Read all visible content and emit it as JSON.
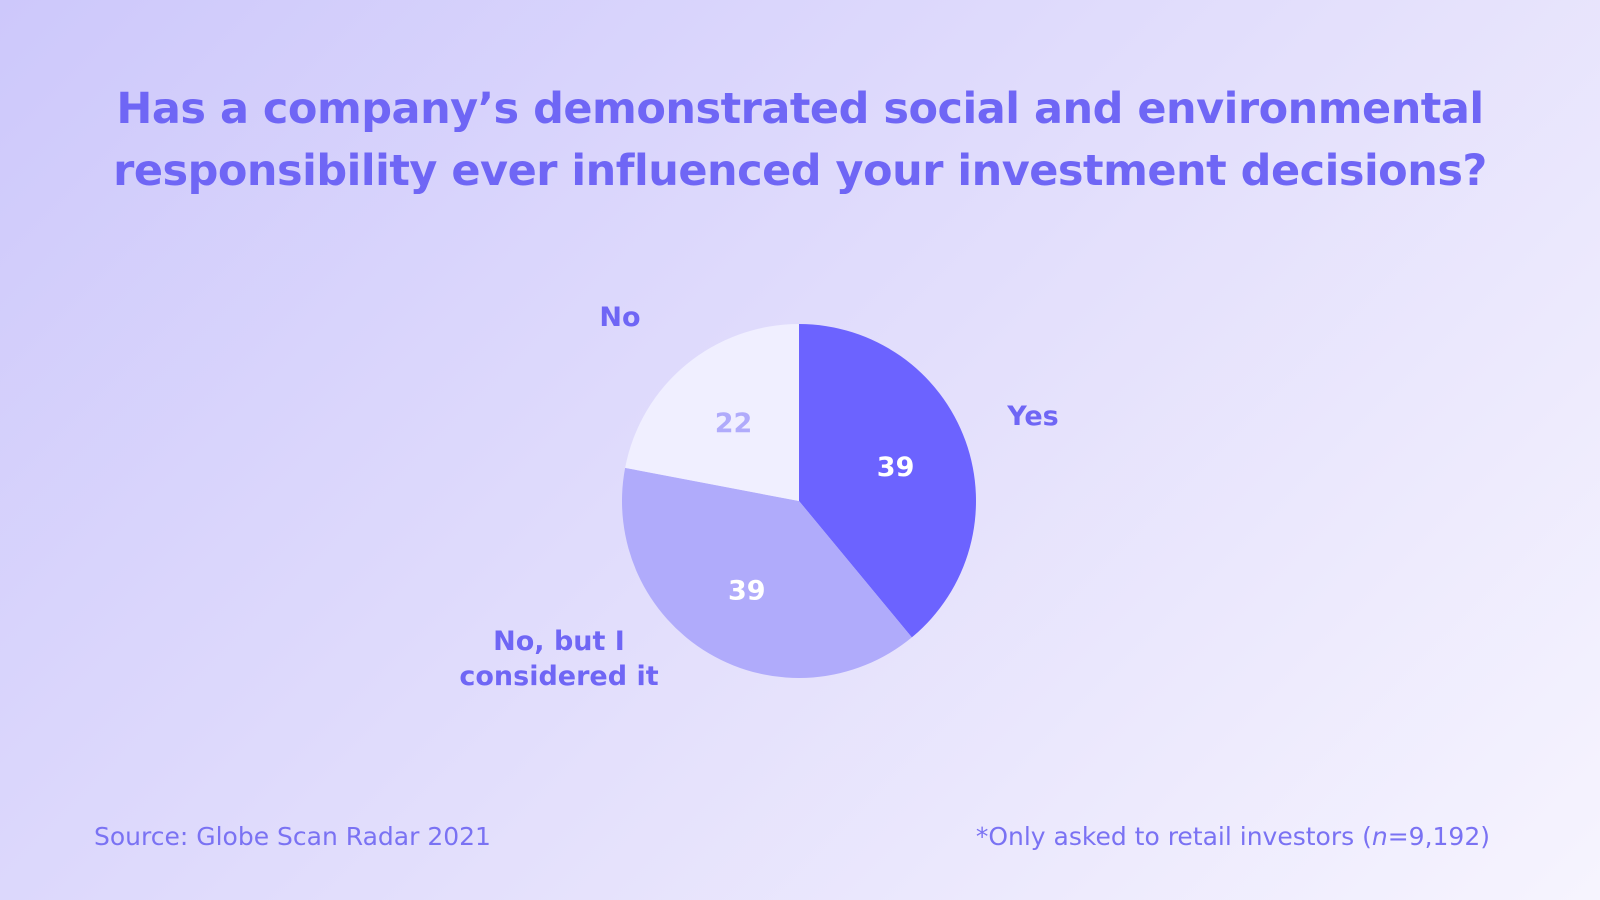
{
  "chart_data": {
    "type": "pie",
    "title_lines": [
      "Has a company’s demonstrated social and environmental",
      "responsibility ever influenced your investment decisions?"
    ],
    "slices": [
      {
        "label": "Yes",
        "value": 39,
        "color": "#6c63ff",
        "value_color": "#ffffff"
      },
      {
        "label": "No, but I considered it",
        "value": 39,
        "color": "#b0abfb",
        "value_color": "#ffffff"
      },
      {
        "label": "No",
        "value": 22,
        "color": "#f0efff",
        "value_color": "#b0abfb"
      }
    ],
    "label_lines": {
      "Yes": [
        "Yes"
      ],
      "No, but I considered it": [
        "No, but I",
        "considered it"
      ],
      "No": [
        "No"
      ]
    }
  },
  "footer": {
    "source": "Source: Globe Scan Radar 2021",
    "note_prefix": "*Only asked to retail investors (",
    "note_n": "n",
    "note_suffix": "=9,192)"
  }
}
